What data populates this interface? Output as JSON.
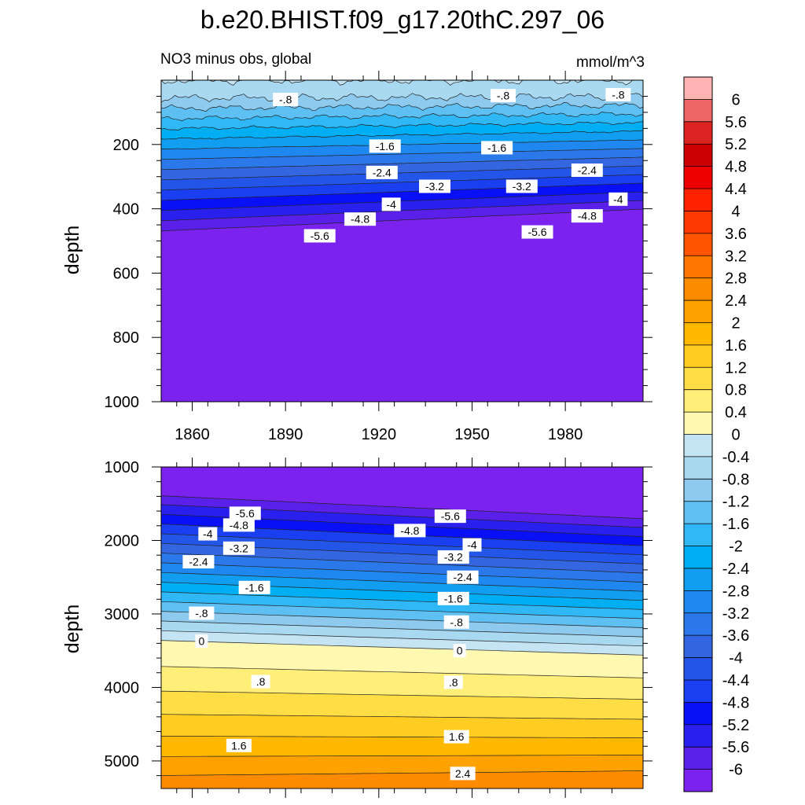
{
  "chart_data": {
    "type": "heatmap",
    "title": "b.e20.BHIST.f09_g17.20thC.297_06",
    "subtitle_left": "NO3 minus obs, global",
    "units": "mmol/m^3",
    "colorbar": {
      "levels": [
        "6",
        "5.6",
        "5.2",
        "4.8",
        "4.4",
        "4",
        "3.6",
        "3.2",
        "2.8",
        "2.4",
        "2",
        "1.6",
        "1.2",
        "0.8",
        "0.4",
        "0",
        "-0.4",
        "-0.8",
        "-1.2",
        "-1.6",
        "-2",
        "-2.4",
        "-2.8",
        "-3.2",
        "-3.6",
        "-4",
        "-4.4",
        "-4.8",
        "-5.2",
        "-5.6",
        "-6"
      ],
      "colors": [
        "#ffb3b3",
        "#ee6666",
        "#dd2222",
        "#cc0000",
        "#ee0000",
        "#ff2200",
        "#ff3a00",
        "#ff5500",
        "#ff7700",
        "#ff8c00",
        "#ffa200",
        "#ffb800",
        "#ffcc22",
        "#ffdd44",
        "#ffee77",
        "#fff8b0",
        "#c4e4f4",
        "#a8d9f0",
        "#8ecaee",
        "#5dbff2",
        "#30b8f6",
        "#00aef4",
        "#119ef0",
        "#1e88f0",
        "#2a78ea",
        "#3366e0",
        "#2255e8",
        "#1a3ff0",
        "#0a10f5",
        "#2a20ee",
        "#5a1fe8",
        "#7b22ee"
      ]
    },
    "panels": [
      {
        "name": "upper",
        "ylabel": "depth",
        "x_ticks": [
          "1860",
          "1890",
          "1920",
          "1950",
          "1980"
        ],
        "x_tick_values": [
          1860,
          1890,
          1920,
          1950,
          1980
        ],
        "xlim": [
          1850,
          2005
        ],
        "y_ticks": [
          "200",
          "400",
          "600",
          "800",
          "1000"
        ],
        "y_tick_values": [
          200,
          400,
          600,
          800,
          1000
        ],
        "ylim": [
          0,
          1000
        ],
        "contour_labels": [
          {
            "text": "-.8",
            "x": 1890,
            "y": 60
          },
          {
            "text": "-.8",
            "x": 1960,
            "y": 48
          },
          {
            "text": "-.8",
            "x": 1997,
            "y": 45
          },
          {
            "text": "-1.6",
            "x": 1922,
            "y": 205
          },
          {
            "text": "-1.6",
            "x": 1958,
            "y": 210
          },
          {
            "text": "-2.4",
            "x": 1921,
            "y": 287
          },
          {
            "text": "-2.4",
            "x": 1987,
            "y": 280
          },
          {
            "text": "-3.2",
            "x": 1938,
            "y": 330
          },
          {
            "text": "-3.2",
            "x": 1966,
            "y": 330
          },
          {
            "text": "-4",
            "x": 1924,
            "y": 386
          },
          {
            "text": "-4",
            "x": 1997,
            "y": 370
          },
          {
            "text": "-4.8",
            "x": 1914,
            "y": 432
          },
          {
            "text": "-4.8",
            "x": 1987,
            "y": 422
          },
          {
            "text": "-5.6",
            "x": 1901,
            "y": 484
          },
          {
            "text": "-5.6",
            "x": 1971,
            "y": 472
          }
        ]
      },
      {
        "name": "lower",
        "ylabel": "depth",
        "y_ticks": [
          "1000",
          "2000",
          "3000",
          "4000",
          "5000"
        ],
        "y_tick_values": [
          1000,
          2000,
          3000,
          4000,
          5000
        ],
        "ylim": [
          1000,
          5375
        ],
        "contour_labels": [
          {
            "text": "-5.6",
            "x": 1877,
            "y": 1630
          },
          {
            "text": "-5.6",
            "x": 1943,
            "y": 1670
          },
          {
            "text": "-4.8",
            "x": 1875,
            "y": 1790
          },
          {
            "text": "-4.8",
            "x": 1930,
            "y": 1865
          },
          {
            "text": "-4",
            "x": 1865,
            "y": 1910
          },
          {
            "text": "-4",
            "x": 1950,
            "y": 2060
          },
          {
            "text": "-3.2",
            "x": 1875,
            "y": 2105
          },
          {
            "text": "-3.2",
            "x": 1944,
            "y": 2225
          },
          {
            "text": "-2.4",
            "x": 1862,
            "y": 2290
          },
          {
            "text": "-2.4",
            "x": 1947,
            "y": 2500
          },
          {
            "text": "-1.6",
            "x": 1880,
            "y": 2640
          },
          {
            "text": "-1.6",
            "x": 1944,
            "y": 2790
          },
          {
            "text": "-.8",
            "x": 1863,
            "y": 2990
          },
          {
            "text": "-.8",
            "x": 1945,
            "y": 3110
          },
          {
            "text": "0",
            "x": 1863,
            "y": 3370
          },
          {
            "text": "0",
            "x": 1946,
            "y": 3500
          },
          {
            "text": ".8",
            "x": 1882,
            "y": 3920
          },
          {
            "text": ".8",
            "x": 1944,
            "y": 3930
          },
          {
            "text": "1.6",
            "x": 1875,
            "y": 4790
          },
          {
            "text": "1.6",
            "x": 1945,
            "y": 4670
          },
          {
            "text": "2.4",
            "x": 1947,
            "y": 5170
          }
        ]
      }
    ]
  }
}
